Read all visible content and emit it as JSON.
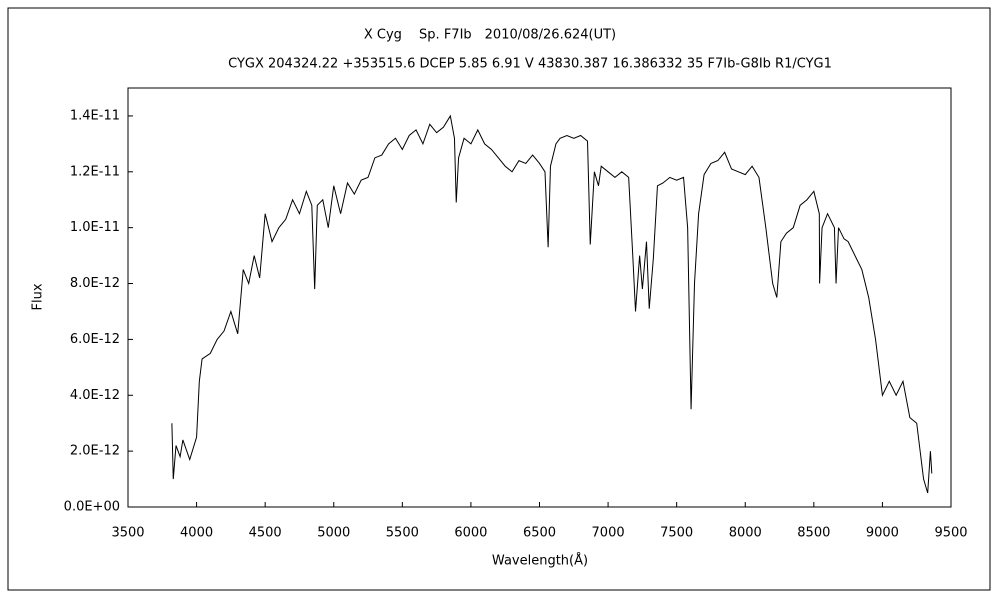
{
  "chart_data": {
    "type": "line",
    "title": "X Cyg　 Sp. F7Ib　2010/08/26.624(UT)",
    "subtitle": "CYGX 204324.22 +353515.6 DCEP 5.85 6.91 V 43830.387 16.386332 35 F7Ib-G8Ib R1/CYG1",
    "x_label": "Wavelength(Å)",
    "y_label": "Flux",
    "color": "#000000",
    "xlim": [
      3500,
      9500
    ],
    "ylim": [
      0,
      1.5e-11
    ],
    "xticks": [
      3500,
      4000,
      4500,
      5000,
      5500,
      6000,
      6500,
      7000,
      7500,
      8000,
      8500,
      9000,
      9500
    ],
    "yticks": [
      {
        "value": 0,
        "label": "0.0E+00"
      },
      {
        "value": 2e-12,
        "label": "2.0E-12"
      },
      {
        "value": 4e-12,
        "label": "4.0E-12"
      },
      {
        "value": 6e-12,
        "label": "6.0E-12"
      },
      {
        "value": 8e-12,
        "label": "8.0E-12"
      },
      {
        "value": 1e-11,
        "label": "1.0E-11"
      },
      {
        "value": 1.2e-11,
        "label": "1.2E-11"
      },
      {
        "value": 1.4e-11,
        "label": "1.4E-11"
      }
    ],
    "x": [
      3820,
      3830,
      3850,
      3880,
      3900,
      3950,
      4000,
      4020,
      4040,
      4100,
      4150,
      4200,
      4250,
      4300,
      4340,
      4380,
      4420,
      4460,
      4500,
      4550,
      4600,
      4650,
      4700,
      4750,
      4800,
      4840,
      4861,
      4880,
      4920,
      4960,
      5000,
      5050,
      5100,
      5150,
      5200,
      5250,
      5300,
      5350,
      5400,
      5450,
      5500,
      5550,
      5600,
      5650,
      5700,
      5750,
      5800,
      5850,
      5880,
      5893,
      5910,
      5950,
      6000,
      6050,
      6100,
      6150,
      6200,
      6250,
      6300,
      6350,
      6400,
      6450,
      6500,
      6540,
      6563,
      6580,
      6620,
      6650,
      6700,
      6750,
      6800,
      6850,
      6870,
      6900,
      6930,
      6950,
      7000,
      7050,
      7100,
      7150,
      7180,
      7200,
      7230,
      7250,
      7280,
      7300,
      7330,
      7360,
      7400,
      7450,
      7500,
      7550,
      7580,
      7605,
      7630,
      7660,
      7700,
      7750,
      7800,
      7850,
      7900,
      7950,
      8000,
      8050,
      8100,
      8150,
      8200,
      8230,
      8260,
      8300,
      8350,
      8400,
      8450,
      8500,
      8540,
      8542,
      8560,
      8600,
      8650,
      8662,
      8680,
      8720,
      8750,
      8800,
      8850,
      8900,
      8950,
      9000,
      9050,
      9100,
      9150,
      9200,
      9250,
      9300,
      9330,
      9350,
      9360
    ],
    "values": [
      3e-12,
      1e-12,
      2.2e-12,
      1.8e-12,
      2.4e-12,
      1.7e-12,
      2.5e-12,
      4.5e-12,
      5.3e-12,
      5.5e-12,
      6e-12,
      6.3e-12,
      7e-12,
      6.2e-12,
      8.5e-12,
      8e-12,
      9e-12,
      8.2e-12,
      1.05e-11,
      9.5e-12,
      1e-11,
      1.03e-11,
      1.1e-11,
      1.05e-11,
      1.13e-11,
      1.08e-11,
      7.8e-12,
      1.08e-11,
      1.1e-11,
      1e-11,
      1.15e-11,
      1.05e-11,
      1.16e-11,
      1.12e-11,
      1.17e-11,
      1.18e-11,
      1.25e-11,
      1.26e-11,
      1.3e-11,
      1.32e-11,
      1.28e-11,
      1.33e-11,
      1.35e-11,
      1.3e-11,
      1.37e-11,
      1.34e-11,
      1.36e-11,
      1.4e-11,
      1.32e-11,
      1.09e-11,
      1.25e-11,
      1.32e-11,
      1.3e-11,
      1.35e-11,
      1.3e-11,
      1.28e-11,
      1.25e-11,
      1.22e-11,
      1.2e-11,
      1.24e-11,
      1.23e-11,
      1.26e-11,
      1.23e-11,
      1.2e-11,
      9.3e-12,
      1.22e-11,
      1.3e-11,
      1.32e-11,
      1.33e-11,
      1.32e-11,
      1.33e-11,
      1.31e-11,
      9.4e-12,
      1.2e-11,
      1.15e-11,
      1.22e-11,
      1.2e-11,
      1.18e-11,
      1.2e-11,
      1.18e-11,
      9e-12,
      7e-12,
      9e-12,
      7.8e-12,
      9.5e-12,
      7.1e-12,
      8.9e-12,
      1.15e-11,
      1.16e-11,
      1.18e-11,
      1.17e-11,
      1.18e-11,
      1e-11,
      3.5e-12,
      8e-12,
      1.05e-11,
      1.19e-11,
      1.23e-11,
      1.24e-11,
      1.27e-11,
      1.21e-11,
      1.2e-11,
      1.19e-11,
      1.22e-11,
      1.18e-11,
      1e-11,
      8e-12,
      7.5e-12,
      9.5e-12,
      9.8e-12,
      1e-11,
      1.08e-11,
      1.1e-11,
      1.13e-11,
      1.05e-11,
      8e-12,
      1e-11,
      1.05e-11,
      1e-11,
      8e-12,
      1e-11,
      9.6e-12,
      9.5e-12,
      9e-12,
      8.5e-12,
      7.5e-12,
      6e-12,
      4e-12,
      4.5e-12,
      4e-12,
      4.5e-12,
      3.2e-12,
      3e-12,
      1e-12,
      5e-13,
      2e-12,
      1.2e-12
    ]
  }
}
